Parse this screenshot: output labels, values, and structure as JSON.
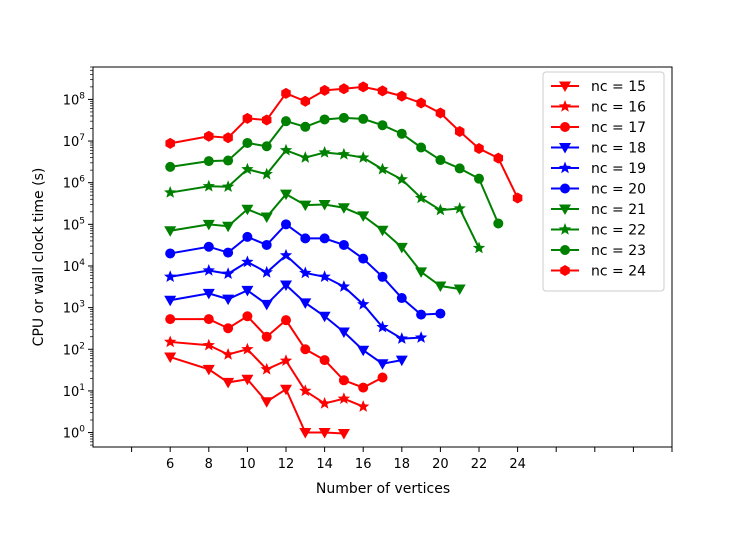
{
  "chart_data": {
    "type": "line",
    "title": "",
    "xlabel": "Number of vertices",
    "ylabel": "CPU or wall clock time (s)",
    "xlim": [
      2,
      32
    ],
    "ylim": [
      0.45,
      600000000
    ],
    "yscale": "log",
    "x_ticks": [
      6,
      8,
      10,
      12,
      14,
      16,
      18,
      20,
      22,
      24
    ],
    "x_tick_labels": [
      "6",
      "8",
      "10",
      "12",
      "14",
      "16",
      "18",
      "20",
      "22",
      "24"
    ],
    "y_ticks": [
      1,
      10,
      100,
      1000,
      10000,
      100000,
      1000000,
      10000000,
      100000000
    ],
    "y_tick_labels": [
      {
        "base": "10",
        "exp": "0"
      },
      {
        "base": "10",
        "exp": "1"
      },
      {
        "base": "10",
        "exp": "2"
      },
      {
        "base": "10",
        "exp": "3"
      },
      {
        "base": "10",
        "exp": "4"
      },
      {
        "base": "10",
        "exp": "5"
      },
      {
        "base": "10",
        "exp": "6"
      },
      {
        "base": "10",
        "exp": "7"
      },
      {
        "base": "10",
        "exp": "8"
      }
    ],
    "grid": false,
    "legend_position": "top-right",
    "series": [
      {
        "name": "nc = 15",
        "color": "#ff0000",
        "marker": "triangle-down",
        "x": [
          6,
          8,
          9,
          10,
          11,
          12,
          13,
          14,
          15
        ],
        "y": [
          65,
          33,
          16,
          19,
          5.5,
          11,
          1.0,
          1.0,
          0.95
        ]
      },
      {
        "name": "nc = 16",
        "color": "#ff0000",
        "marker": "star",
        "x": [
          6,
          8,
          9,
          10,
          11,
          12,
          13,
          14,
          15,
          16
        ],
        "y": [
          150,
          125,
          75,
          100,
          33,
          53,
          10,
          5,
          6.5,
          4.2
        ]
      },
      {
        "name": "nc = 17",
        "color": "#ff0000",
        "marker": "circle",
        "x": [
          6,
          8,
          9,
          10,
          11,
          12,
          13,
          14,
          15,
          16,
          17
        ],
        "y": [
          530,
          530,
          320,
          620,
          200,
          500,
          100,
          55,
          18,
          12,
          21
        ]
      },
      {
        "name": "nc = 18",
        "color": "#0000ff",
        "marker": "triangle-down",
        "x": [
          6,
          8,
          9,
          10,
          11,
          12,
          13,
          14,
          15,
          16,
          17,
          18
        ],
        "y": [
          1500,
          2200,
          1600,
          2600,
          1200,
          3500,
          1300,
          620,
          260,
          95,
          45,
          55
        ]
      },
      {
        "name": "nc = 19",
        "color": "#0000ff",
        "marker": "star",
        "x": [
          6,
          8,
          9,
          10,
          11,
          12,
          13,
          14,
          15,
          16,
          17,
          18,
          19
        ],
        "y": [
          5500,
          7800,
          6500,
          12500,
          7000,
          18000,
          6800,
          5500,
          3200,
          1200,
          340,
          180,
          190
        ]
      },
      {
        "name": "nc = 20",
        "color": "#0000ff",
        "marker": "circle",
        "x": [
          6,
          8,
          9,
          10,
          11,
          12,
          13,
          14,
          15,
          16,
          17,
          18,
          19,
          20
        ],
        "y": [
          20000,
          29000,
          21000,
          50000,
          32000,
          100000,
          46000,
          46000,
          32000,
          15000,
          5500,
          1700,
          680,
          720
        ]
      },
      {
        "name": "nc = 21",
        "color": "#008000",
        "marker": "triangle-down",
        "x": [
          6,
          8,
          9,
          10,
          11,
          12,
          13,
          14,
          15,
          16,
          17,
          18,
          19,
          20,
          21
        ],
        "y": [
          70000,
          100000,
          90000,
          230000,
          150000,
          530000,
          290000,
          300000,
          250000,
          160000,
          72000,
          28000,
          7200,
          3300,
          2800
        ]
      },
      {
        "name": "nc = 22",
        "color": "#008000",
        "marker": "star",
        "x": [
          6,
          8,
          9,
          10,
          11,
          12,
          13,
          14,
          15,
          16,
          17,
          18,
          19,
          20,
          21,
          22
        ],
        "y": [
          580000,
          820000,
          800000,
          2100000,
          1600000,
          6000000,
          4000000,
          5300000,
          4800000,
          4000000,
          2100000,
          1200000,
          430000,
          220000,
          240000,
          27000
        ]
      },
      {
        "name": "nc = 23",
        "color": "#008000",
        "marker": "circle",
        "x": [
          6,
          8,
          9,
          10,
          11,
          12,
          13,
          14,
          15,
          16,
          17,
          18,
          19,
          20,
          21,
          22,
          23
        ],
        "y": [
          2400000,
          3300000,
          3400000,
          9000000,
          7500000,
          30000000,
          22000000,
          33000000,
          36000000,
          34000000,
          24000000,
          15000000,
          7000000,
          3500000,
          2200000,
          1250000,
          105000
        ]
      },
      {
        "name": "nc = 24",
        "color": "#ff0000",
        "marker": "hexagon",
        "x": [
          6,
          8,
          9,
          10,
          11,
          12,
          13,
          14,
          15,
          16,
          17,
          18,
          19,
          20,
          21,
          22,
          23,
          24
        ],
        "y": [
          8800000,
          13000000,
          12000000,
          35000000,
          32000000,
          140000000,
          90000000,
          165000000,
          180000000,
          200000000,
          160000000,
          120000000,
          82000000,
          47000000,
          17000000,
          6600000,
          3900000,
          430000
        ]
      }
    ]
  }
}
